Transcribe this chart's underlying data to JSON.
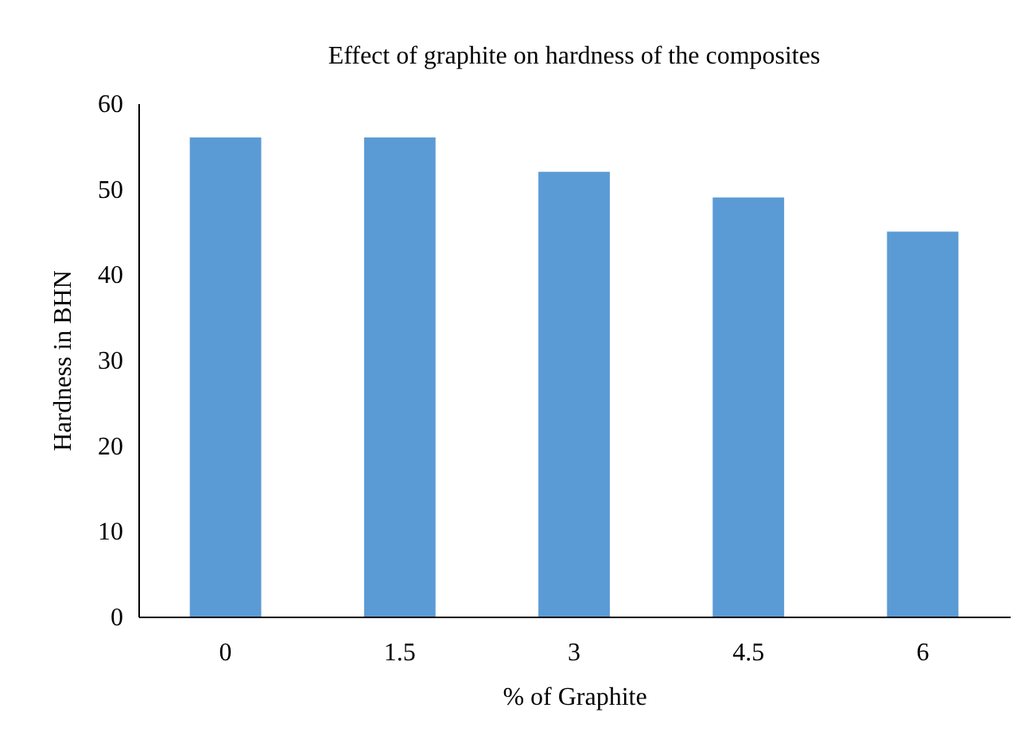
{
  "chart_data": {
    "type": "bar",
    "title": "Effect of graphite on hardness of the composites",
    "xlabel": "% of Graphite",
    "ylabel": "Hardness in BHN",
    "categories": [
      "0",
      "1.5",
      "3",
      "4.5",
      "6"
    ],
    "values": [
      56,
      56,
      52,
      49,
      45
    ],
    "color": "#5b9bd5",
    "ylim": [
      0,
      60
    ],
    "yticks": [
      0,
      10,
      20,
      30,
      40,
      50,
      60
    ]
  }
}
